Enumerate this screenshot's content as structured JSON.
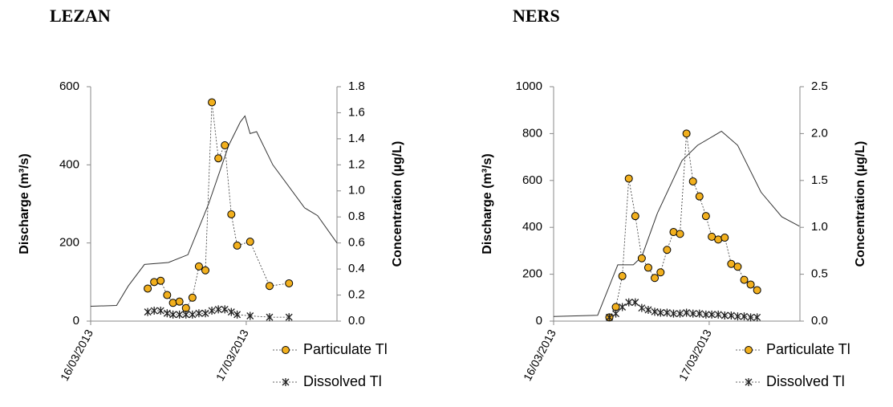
{
  "chart_data": [
    {
      "type": "line",
      "title": "LEZAN",
      "y_label": "Discharge (m³/s)",
      "y2_label": "Concentration (µg/L)",
      "xlim": [
        0,
        38
      ],
      "xticks": [
        {
          "value": 0,
          "label": "16/03/2013"
        },
        {
          "value": 24,
          "label": "17/03/2013"
        }
      ],
      "ylim": [
        0,
        600
      ],
      "yticks": [
        0,
        200,
        400,
        600
      ],
      "y2lim": [
        0,
        1.8
      ],
      "y2ticks": [
        {
          "value": 0,
          "label": "0.0"
        },
        0.2,
        0.4,
        0.6,
        0.8,
        {
          "value": 1,
          "label": "1.0"
        },
        1.2,
        1.4,
        1.6,
        1.8
      ],
      "series": [
        {
          "color": "#333333",
          "x": [
            0,
            4,
            5.8,
            8.3,
            12,
            15,
            18.2,
            21.3,
            23.1,
            23.8,
            24.6,
            25.6,
            28.1,
            33,
            35,
            38
          ],
          "values": [
            38,
            40,
            90,
            145,
            150,
            170,
            300,
            450,
            510,
            525,
            480,
            485,
            400,
            290,
            270,
            200
          ]
        },
        {
          "name": "Particulate Tl",
          "color": "#f2b01e",
          "axis": "y2",
          "marker": "circle",
          "x": [
            8.8,
            9.8,
            10.8,
            11.8,
            12.7,
            13.7,
            14.7,
            15.7,
            16.7,
            17.7,
            18.7,
            19.7,
            20.7,
            21.7,
            22.6,
            24.6,
            27.6,
            30.6
          ],
          "values": [
            0.25,
            0.3,
            0.31,
            0.2,
            0.14,
            0.15,
            0.1,
            0.18,
            0.42,
            0.39,
            1.68,
            1.25,
            1.35,
            0.82,
            0.58,
            0.61,
            0.27,
            0.29
          ]
        },
        {
          "name": "Dissolved Tl",
          "color": "#222222",
          "axis": "y2",
          "marker": "star",
          "x": [
            8.8,
            9.8,
            10.8,
            11.8,
            12.7,
            13.7,
            14.7,
            15.7,
            16.7,
            17.7,
            18.7,
            19.7,
            20.7,
            21.7,
            22.6,
            24.6,
            27.6,
            30.6
          ],
          "values": [
            0.07,
            0.08,
            0.08,
            0.06,
            0.05,
            0.05,
            0.05,
            0.05,
            0.06,
            0.06,
            0.08,
            0.09,
            0.09,
            0.07,
            0.05,
            0.04,
            0.03,
            0.03
          ]
        }
      ]
    },
    {
      "type": "line",
      "title": "NERS",
      "y_label": "Discharge (m³/s)",
      "y2_label": "Concentration (µg/L)",
      "xlim": [
        0,
        38
      ],
      "xticks": [
        {
          "value": 0,
          "label": "16/03/2013"
        },
        {
          "value": 24,
          "label": "17/03/2013"
        }
      ],
      "ylim": [
        0,
        1000
      ],
      "yticks": [
        0,
        200,
        400,
        600,
        800,
        1000
      ],
      "y2lim": [
        0,
        2.5
      ],
      "y2ticks": [
        {
          "value": 0,
          "label": "0.0"
        },
        0.5,
        {
          "value": 1,
          "label": "1.0"
        },
        1.5,
        {
          "value": 2,
          "label": "2.0"
        },
        2.5
      ],
      "series": [
        {
          "color": "#333333",
          "x": [
            0,
            6.8,
            9.9,
            12.3,
            13.6,
            16,
            19.8,
            22.2,
            25.9,
            28.4,
            32,
            35.2,
            37.9
          ],
          "values": [
            20,
            25,
            240,
            240,
            275,
            460,
            685,
            750,
            810,
            750,
            550,
            445,
            405
          ]
        },
        {
          "name": "Particulate Tl",
          "color": "#f2b01e",
          "axis": "y2",
          "marker": "circle",
          "x": [
            8.6,
            9.6,
            10.6,
            11.6,
            12.6,
            13.6,
            14.6,
            15.6,
            16.5,
            17.5,
            18.5,
            19.5,
            20.5,
            21.5,
            22.5,
            23.5,
            24.4,
            25.4,
            26.4,
            27.4,
            28.4,
            29.4,
            30.4,
            31.4
          ],
          "values": [
            0.04,
            0.15,
            0.48,
            1.52,
            1.12,
            0.67,
            0.57,
            0.46,
            0.52,
            0.76,
            0.95,
            0.93,
            2.0,
            1.49,
            1.33,
            1.12,
            0.9,
            0.87,
            0.89,
            0.61,
            0.58,
            0.44,
            0.39,
            0.33
          ]
        },
        {
          "name": "Dissolved Tl",
          "color": "#222222",
          "axis": "y2",
          "marker": "star",
          "x": [
            8.6,
            9.6,
            10.6,
            11.6,
            12.6,
            13.6,
            14.6,
            15.6,
            16.5,
            17.5,
            18.5,
            19.5,
            20.5,
            21.5,
            22.5,
            23.5,
            24.4,
            25.4,
            26.4,
            27.4,
            28.4,
            29.4,
            30.4,
            31.4
          ],
          "values": [
            0.04,
            0.08,
            0.15,
            0.2,
            0.2,
            0.14,
            0.12,
            0.1,
            0.09,
            0.09,
            0.08,
            0.08,
            0.09,
            0.08,
            0.08,
            0.07,
            0.07,
            0.07,
            0.06,
            0.06,
            0.05,
            0.05,
            0.04,
            0.04
          ]
        }
      ]
    }
  ]
}
